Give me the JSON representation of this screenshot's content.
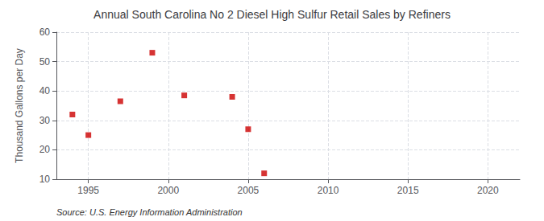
{
  "chart_data": {
    "type": "scatter",
    "title": "Annual South Carolina No 2 Diesel High Sulfur Retail Sales by Refiners",
    "y_label": "Thousand Gallons per Day",
    "source": "Source: U.S. Energy Information Administration",
    "x": [
      1994,
      1995,
      1997,
      1999,
      2001,
      2004,
      2005,
      2006
    ],
    "values": [
      32,
      25,
      36.5,
      53,
      38.5,
      38,
      27,
      12
    ],
    "color": "#cc0000",
    "marker": "square",
    "xlim": [
      1993,
      2022
    ],
    "ylim": [
      10,
      60
    ],
    "xticks": [
      1995,
      2000,
      2005,
      2010,
      2015,
      2020
    ],
    "yticks": [
      10,
      20,
      30,
      40,
      50,
      60
    ],
    "grid": true
  }
}
